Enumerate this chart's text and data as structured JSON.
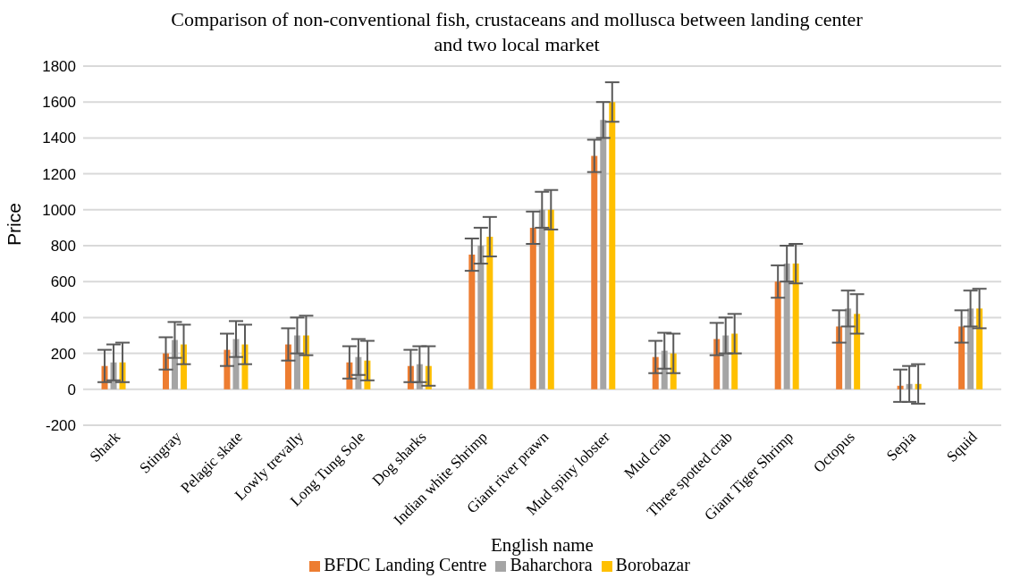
{
  "chart_data": {
    "type": "bar",
    "title": "Comparison of non-conventional fish, crustaceans and mollusca between landing center and two local market",
    "xlabel": "English name",
    "ylabel": "Price",
    "categories": [
      "Shark",
      "Stingray",
      "Pelagic skate",
      "Lowly trevally",
      "Long Tung Sole",
      "Dog sharks",
      "Indian white Shrimp",
      "Giant river prawn",
      "Mud spiny lobster",
      "Mud crab",
      "Three spotted crab",
      "Giant Tiger Shrimp",
      "Octopus",
      "Sepia",
      "Squid"
    ],
    "series": [
      {
        "name": "BFDC Landing Centre",
        "color": "#ed7d31",
        "values": [
          130,
          200,
          220,
          250,
          150,
          130,
          750,
          900,
          1300,
          180,
          280,
          600,
          350,
          20,
          350
        ],
        "errors": [
          90,
          90,
          90,
          90,
          90,
          90,
          90,
          90,
          90,
          90,
          90,
          90,
          90,
          90,
          90
        ]
      },
      {
        "name": "Baharchora",
        "color": "#a5a5a5",
        "values": [
          150,
          275,
          280,
          300,
          180,
          140,
          800,
          1000,
          1500,
          215,
          300,
          700,
          450,
          30,
          450
        ],
        "errors": [
          100,
          100,
          100,
          100,
          100,
          100,
          100,
          100,
          100,
          100,
          100,
          100,
          100,
          100,
          100
        ]
      },
      {
        "name": "Borobazar",
        "color": "#ffc000",
        "values": [
          150,
          250,
          250,
          300,
          160,
          130,
          850,
          1000,
          1600,
          200,
          310,
          700,
          420,
          30,
          450
        ],
        "errors": [
          110,
          110,
          110,
          110,
          110,
          110,
          110,
          110,
          110,
          110,
          110,
          110,
          110,
          110,
          110
        ]
      }
    ],
    "ylim": [
      -200,
      1800
    ],
    "yticks": [
      -200,
      0,
      200,
      400,
      600,
      800,
      1000,
      1200,
      1400,
      1600,
      1800
    ],
    "grid": "y",
    "legend": "bottom"
  }
}
